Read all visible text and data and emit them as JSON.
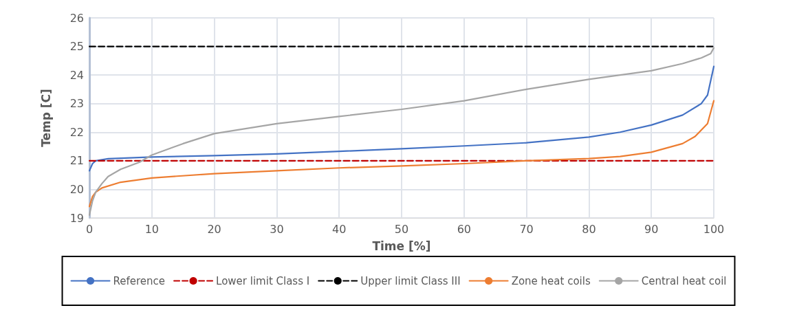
{
  "chart_data": {
    "type": "line",
    "xlabel": "Time [%]",
    "ylabel": "Temp [C]",
    "xlim": [
      0,
      100
    ],
    "xticks": [
      0,
      10,
      20,
      30,
      40,
      50,
      60,
      70,
      80,
      90,
      100
    ],
    "ylim": [
      19,
      26
    ],
    "yticks": [
      19,
      20,
      21,
      22,
      23,
      24,
      25,
      26
    ],
    "grid": true,
    "legend": "bottom",
    "marker": "none",
    "series": [
      {
        "name": "Reference",
        "color": "#4472c4",
        "line_style": "solid",
        "x": [
          0,
          0.5,
          1,
          3,
          10,
          20,
          30,
          40,
          50,
          60,
          70,
          80,
          85,
          90,
          95,
          98,
          99,
          100
        ],
        "values": [
          20.65,
          20.9,
          21.0,
          21.07,
          21.13,
          21.18,
          21.24,
          21.33,
          21.42,
          21.52,
          21.63,
          21.83,
          22.0,
          22.25,
          22.6,
          23.0,
          23.3,
          24.3
        ]
      },
      {
        "name": "Lower limit Class I",
        "color": "#c00000",
        "line_style": "dashed",
        "x": [
          0,
          100
        ],
        "values": [
          21,
          21
        ]
      },
      {
        "name": "Upper limit Class III",
        "color": "#000000",
        "line_style": "dashed",
        "x": [
          0,
          100
        ],
        "values": [
          25,
          25
        ]
      },
      {
        "name": "Zone heat coils",
        "color": "#ed7d31",
        "line_style": "solid",
        "x": [
          0,
          0.5,
          1,
          2,
          5,
          10,
          20,
          30,
          40,
          50,
          60,
          70,
          80,
          85,
          90,
          95,
          97,
          99,
          100
        ],
        "values": [
          19.4,
          19.75,
          19.9,
          20.05,
          20.25,
          20.4,
          20.55,
          20.65,
          20.75,
          20.82,
          20.9,
          21.0,
          21.08,
          21.15,
          21.3,
          21.6,
          21.85,
          22.3,
          23.1
        ]
      },
      {
        "name": "Central heat coil",
        "color": "#a5a5a5",
        "line_style": "solid",
        "x": [
          0,
          0.5,
          1,
          2,
          3,
          5,
          8,
          10,
          15,
          20,
          30,
          40,
          50,
          60,
          70,
          80,
          90,
          95,
          98,
          99.5,
          100
        ],
        "values": [
          19.1,
          19.6,
          19.9,
          20.2,
          20.45,
          20.7,
          20.95,
          21.2,
          21.6,
          21.95,
          22.3,
          22.55,
          22.8,
          23.1,
          23.5,
          23.85,
          24.15,
          24.4,
          24.6,
          24.75,
          24.95
        ]
      }
    ]
  }
}
